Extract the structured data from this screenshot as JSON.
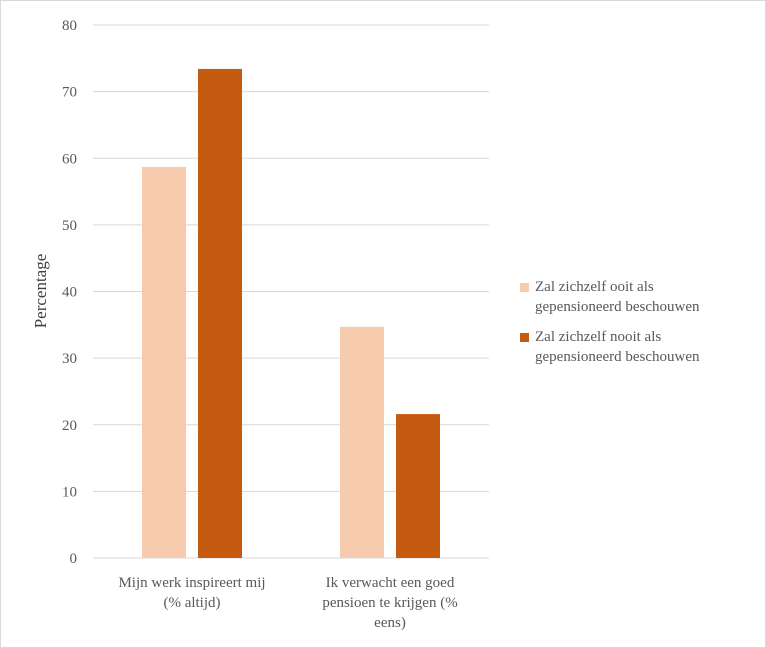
{
  "chart_data": {
    "type": "bar",
    "title": "",
    "xlabel": "",
    "ylabel": "Percentage",
    "ylim": [
      0,
      80
    ],
    "yticks": [
      0,
      10,
      20,
      30,
      40,
      50,
      60,
      70,
      80
    ],
    "grid": true,
    "legend_position": "right",
    "categories": [
      "Mijn werk inspireert mij (% altijd)",
      "Ik verwacht een goed pensioen te krijgen (% eens)"
    ],
    "category_lines": [
      [
        "Mijn werk inspireert mij",
        "(% altijd)"
      ],
      [
        "Ik verwacht een goed",
        "pensioen te krijgen (%",
        "eens)"
      ]
    ],
    "series": [
      {
        "name": "Zal zichzelf ooit als gepensioneerd beschouwen",
        "name_lines": [
          "Zal zichzelf ooit als",
          "gepensioneerd beschouwen"
        ],
        "color": "#f7cbad",
        "values": [
          58.7,
          34.7
        ]
      },
      {
        "name": "Zal zichzelf nooit als gepensioneerd beschouwen",
        "name_lines": [
          "Zal zichzelf nooit als",
          "gepensioneerd beschouwen"
        ],
        "color": "#c55a11",
        "values": [
          73.4,
          21.6
        ]
      }
    ]
  }
}
